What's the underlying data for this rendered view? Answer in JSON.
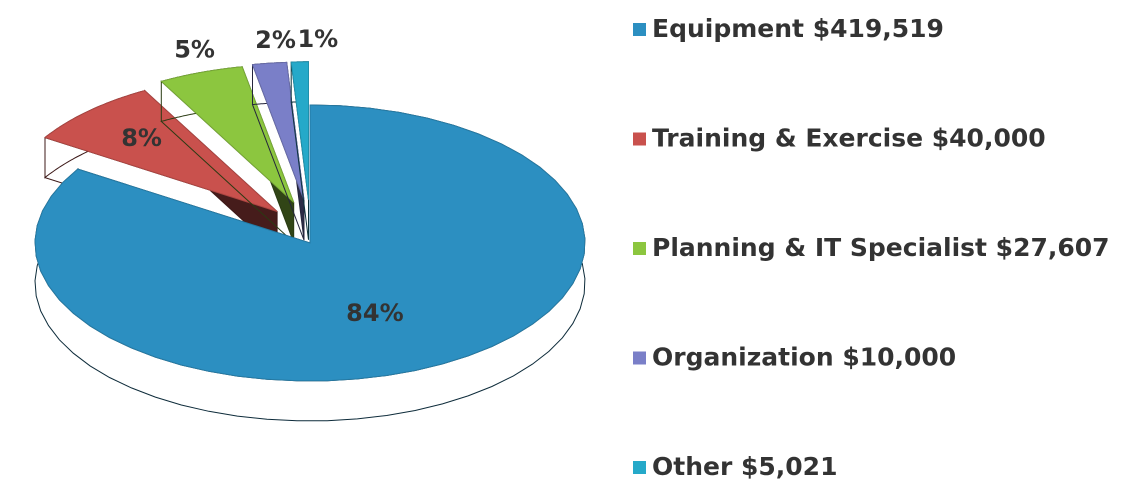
{
  "chart_data": {
    "type": "pie",
    "categories": [
      "Equipment $419,519",
      "Training & Exercise $40,000",
      "Planning & IT Specialist $27,607",
      "Organization $10,000",
      "Other $5,021"
    ],
    "values": [
      84,
      8,
      5,
      2,
      1
    ],
    "value_labels": [
      "84%",
      "8%",
      "5%",
      "2%",
      "1%"
    ],
    "colors": [
      "#2c8fc1",
      "#c9514d",
      "#8cc63f",
      "#7a7fc8",
      "#25a9c9"
    ],
    "legend": "right"
  }
}
